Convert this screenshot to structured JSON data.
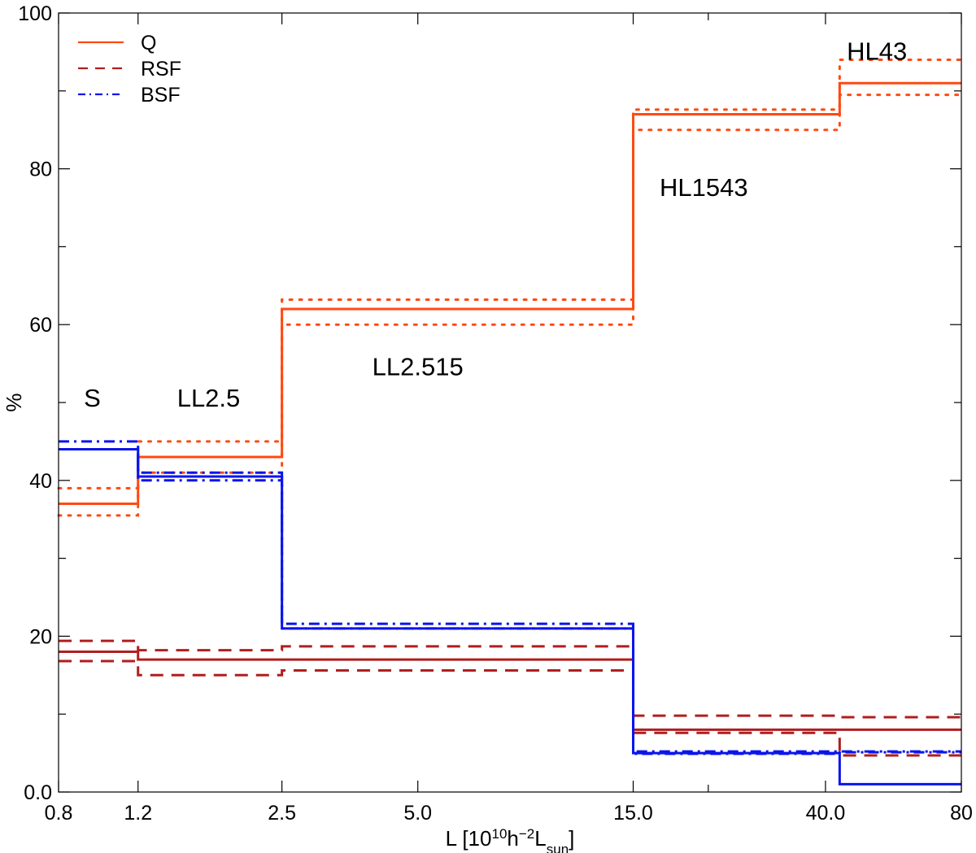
{
  "chart_data": {
    "type": "line",
    "step": true,
    "xlabel": "L [10",
    "xlabel_sup1": "10",
    "xlabel_h": "h",
    "xlabel_sup2": "−2",
    "xlabel_l": "L",
    "xlabel_sub": "sun",
    "xlabel_close": "]",
    "ylabel": "%",
    "xscale": "log",
    "xlim": [
      0.8,
      80
    ],
    "ylim": [
      0,
      100
    ],
    "x_ticks": [
      0.8,
      1.2,
      2.5,
      5.0,
      15.0,
      40.0,
      80
    ],
    "x_tick_labels": [
      "0.8",
      "1.2",
      "2.5",
      "5.0",
      "15.0",
      "40.0",
      "80"
    ],
    "x_minor_ticks": [
      22.0
    ],
    "y_ticks": [
      0,
      20,
      40,
      60,
      80,
      100
    ],
    "y_tick_labels": [
      "0.0",
      "20",
      "40",
      "60",
      "80",
      "100"
    ],
    "bin_edges": [
      0.8,
      1.2,
      2.5,
      15.0,
      43.0,
      80
    ],
    "legend_position": "top-left",
    "colors": {
      "Q": "#ff4a12",
      "RSF": "#b01e1e",
      "BSF": "#0a14ee"
    },
    "series": [
      {
        "name": "Q",
        "style": "solid",
        "color": "#ff4a12",
        "values": [
          37,
          43,
          62,
          87,
          91
        ]
      },
      {
        "name": "Q upper",
        "style": "dotted",
        "color": "#ff4a12",
        "values": [
          39,
          45,
          63.2,
          87.6,
          94
        ]
      },
      {
        "name": "Q lower",
        "style": "dotted",
        "color": "#ff4a12",
        "values": [
          35.5,
          41,
          60,
          85,
          89.5
        ]
      },
      {
        "name": "RSF",
        "style": "solid",
        "color": "#b01e1e",
        "values": [
          18,
          17,
          17,
          8,
          8
        ]
      },
      {
        "name": "RSF upper",
        "style": "dashed",
        "color": "#b01e1e",
        "values": [
          19.4,
          18.2,
          18.7,
          9.8,
          9.6
        ]
      },
      {
        "name": "RSF lower",
        "style": "dashed",
        "color": "#b01e1e",
        "values": [
          16.8,
          15,
          15.6,
          7.6,
          4.7
        ]
      },
      {
        "name": "BSF",
        "style": "solid",
        "color": "#0a14ee",
        "values": [
          44,
          40.5,
          21,
          5,
          1
        ]
      },
      {
        "name": "BSF upper",
        "style": "dashdot",
        "color": "#0a14ee",
        "values": [
          45,
          41,
          21.6,
          5.2,
          5.2
        ]
      },
      {
        "name": "BSF lower",
        "style": "dashdot",
        "color": "#0a14ee",
        "values": [
          44,
          40,
          21,
          4.9,
          5.1
        ]
      }
    ],
    "legend": [
      {
        "name": "Q",
        "style": "solid",
        "color": "#ff4a12"
      },
      {
        "name": "RSF",
        "style": "dashed",
        "color": "#b01e1e"
      },
      {
        "name": "BSF",
        "style": "dashdot",
        "color": "#0a14ee"
      }
    ],
    "annotations": [
      {
        "text": "S",
        "x": 0.95,
        "y": 49.5
      },
      {
        "text": "LL2.5",
        "x": 1.72,
        "y": 49.5
      },
      {
        "text": "LL2.515",
        "x": 5.0,
        "y": 53.5
      },
      {
        "text": "HL1543",
        "x": 21.5,
        "y": 76.5
      },
      {
        "text": "HL43",
        "x": 52.0,
        "y": 94.0
      }
    ]
  }
}
